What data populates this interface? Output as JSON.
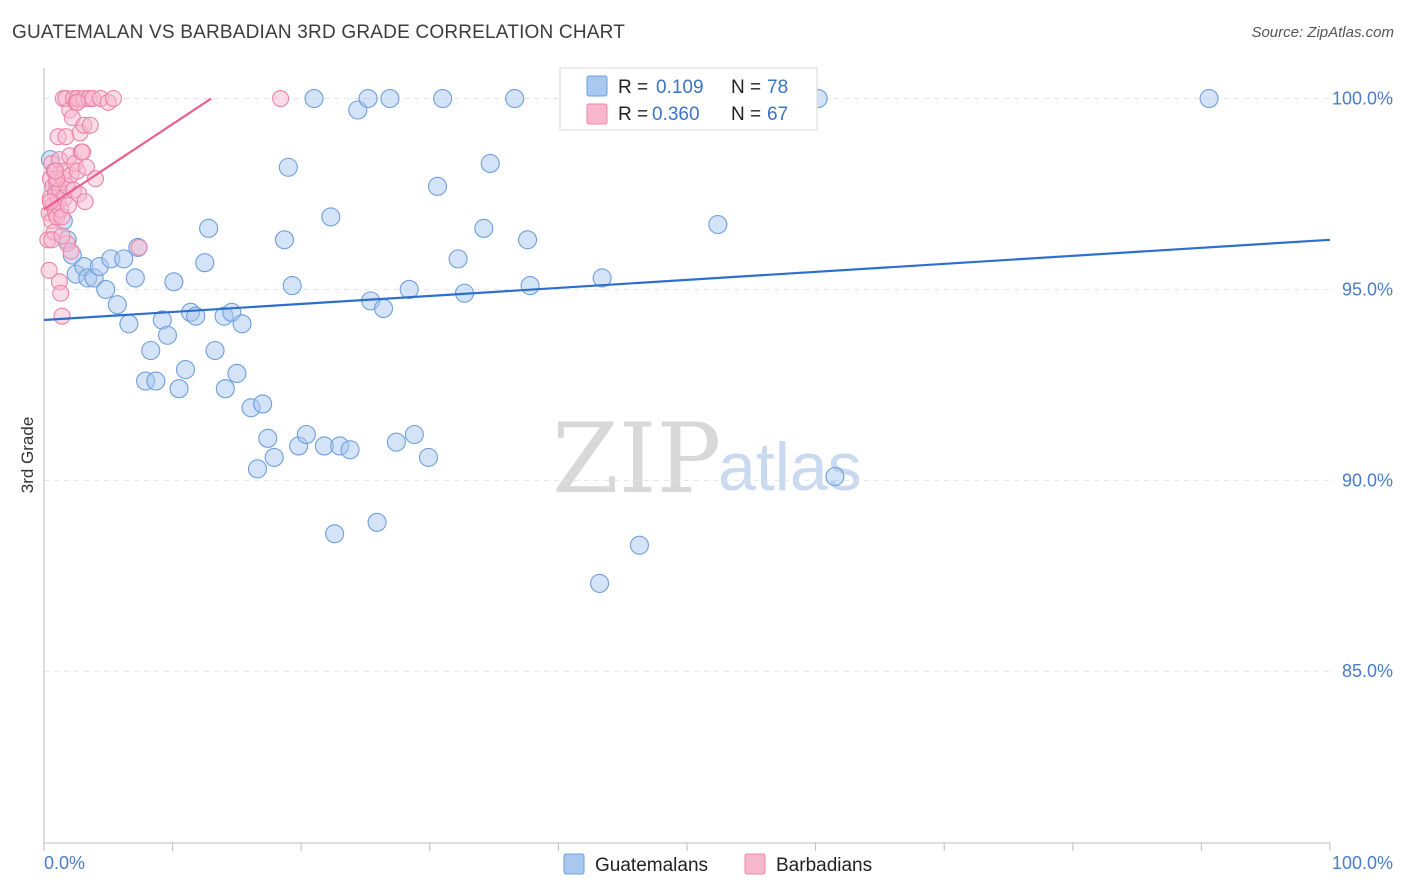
{
  "title": "GUATEMALAN VS BARBADIAN 3RD GRADE CORRELATION CHART",
  "source": "Source: ZipAtlas.com",
  "watermark": {
    "zip": "ZIP",
    "atlas": "atlas"
  },
  "colors": {
    "blue_fill": "#a9c8f0",
    "blue_stroke": "#6d9fdc",
    "blue_line": "#2d6fcc",
    "pink_fill": "#f7b8cd",
    "pink_stroke": "#ec84a8",
    "pink_line": "#e8608f",
    "tick_text": "#4a7cc9",
    "grid": "#e2e2e2"
  },
  "legend": {
    "rows": [
      {
        "r_label": "R = ",
        "r_value": "0.109",
        "n_label": "N = ",
        "n_value": "78"
      },
      {
        "r_label": "R = ",
        "r_value": "0.360",
        "n_label": "N = ",
        "n_value": "67"
      }
    ]
  },
  "chart_data": {
    "type": "scatter",
    "title": "GUATEMALAN VS BARBADIAN 3RD GRADE CORRELATION CHART",
    "xlabel": "",
    "ylabel": "3rd Grade",
    "xlim": [
      0,
      100
    ],
    "ylim": [
      80.5,
      100.8
    ],
    "x_ticks": [
      "0.0%",
      "100.0%"
    ],
    "y_ticks": [
      {
        "value": 100,
        "label": "100.0%"
      },
      {
        "value": 95,
        "label": "95.0%"
      },
      {
        "value": 90,
        "label": "90.0%"
      },
      {
        "value": 85,
        "label": "85.0%"
      }
    ],
    "grid": true,
    "legend_position": "top-center",
    "series": [
      {
        "name": "Guatemalans",
        "color": "#a9c8f0",
        "trend": {
          "x": [
            0,
            100
          ],
          "y": [
            94.2,
            96.3
          ]
        },
        "points": [
          [
            0.5,
            98.4
          ],
          [
            1.0,
            97.6
          ],
          [
            1.5,
            96.8
          ],
          [
            1.8,
            96.3
          ],
          [
            2.2,
            95.9
          ],
          [
            2.5,
            95.4
          ],
          [
            3.1,
            95.6
          ],
          [
            3.4,
            95.3
          ],
          [
            3.9,
            95.3
          ],
          [
            4.3,
            95.6
          ],
          [
            4.8,
            95.0
          ],
          [
            5.2,
            95.8
          ],
          [
            5.7,
            94.6
          ],
          [
            6.2,
            95.8
          ],
          [
            6.6,
            94.1
          ],
          [
            7.1,
            95.3
          ],
          [
            7.3,
            96.1
          ],
          [
            7.9,
            92.6
          ],
          [
            8.3,
            93.4
          ],
          [
            8.7,
            92.6
          ],
          [
            9.2,
            94.2
          ],
          [
            9.6,
            93.8
          ],
          [
            10.1,
            95.2
          ],
          [
            10.5,
            92.4
          ],
          [
            11.0,
            92.9
          ],
          [
            11.4,
            94.4
          ],
          [
            11.8,
            94.3
          ],
          [
            12.5,
            95.7
          ],
          [
            12.8,
            96.6
          ],
          [
            13.3,
            93.4
          ],
          [
            14.1,
            92.4
          ],
          [
            14.0,
            94.3
          ],
          [
            14.6,
            94.4
          ],
          [
            15.0,
            92.8
          ],
          [
            15.4,
            94.1
          ],
          [
            16.1,
            91.9
          ],
          [
            16.6,
            90.3
          ],
          [
            17.0,
            92.0
          ],
          [
            17.4,
            91.1
          ],
          [
            17.9,
            90.6
          ],
          [
            18.7,
            96.3
          ],
          [
            19.0,
            98.2
          ],
          [
            19.3,
            95.1
          ],
          [
            19.8,
            90.9
          ],
          [
            20.4,
            91.2
          ],
          [
            21.0,
            100.0
          ],
          [
            21.8,
            90.9
          ],
          [
            22.3,
            96.9
          ],
          [
            22.6,
            88.6
          ],
          [
            23.0,
            90.9
          ],
          [
            23.8,
            90.8
          ],
          [
            24.4,
            99.7
          ],
          [
            25.2,
            100.0
          ],
          [
            25.4,
            94.7
          ],
          [
            25.9,
            88.9
          ],
          [
            26.4,
            94.5
          ],
          [
            26.9,
            100.0
          ],
          [
            27.4,
            91.0
          ],
          [
            28.4,
            95.0
          ],
          [
            28.8,
            91.2
          ],
          [
            29.9,
            90.6
          ],
          [
            30.6,
            97.7
          ],
          [
            31.0,
            100.0
          ],
          [
            32.2,
            95.8
          ],
          [
            32.7,
            94.9
          ],
          [
            34.2,
            96.6
          ],
          [
            34.7,
            98.3
          ],
          [
            36.6,
            100.0
          ],
          [
            37.6,
            96.3
          ],
          [
            37.8,
            95.1
          ],
          [
            43.2,
            87.3
          ],
          [
            43.4,
            95.3
          ],
          [
            46.3,
            88.3
          ],
          [
            52.4,
            96.7
          ],
          [
            58.9,
            100.0
          ],
          [
            60.2,
            100.0
          ],
          [
            61.5,
            90.1
          ],
          [
            90.6,
            100.0
          ]
        ]
      },
      {
        "name": "Barbadians",
        "color": "#f7b8cd",
        "trend": {
          "x": [
            0,
            13
          ],
          "y": [
            97.1,
            100.0
          ]
        },
        "points": [
          [
            0.3,
            96.3
          ],
          [
            0.4,
            97.0
          ],
          [
            0.5,
            97.4
          ],
          [
            0.5,
            97.9
          ],
          [
            0.6,
            98.3
          ],
          [
            0.6,
            96.8
          ],
          [
            0.7,
            97.2
          ],
          [
            0.7,
            97.7
          ],
          [
            0.8,
            96.5
          ],
          [
            0.8,
            98.1
          ],
          [
            0.9,
            97.5
          ],
          [
            0.9,
            97.0
          ],
          [
            1.0,
            96.9
          ],
          [
            1.0,
            97.8
          ],
          [
            1.1,
            99.0
          ],
          [
            1.1,
            97.3
          ],
          [
            1.2,
            98.4
          ],
          [
            1.2,
            97.6
          ],
          [
            1.2,
            95.2
          ],
          [
            1.3,
            94.9
          ],
          [
            1.3,
            97.1
          ],
          [
            1.4,
            94.3
          ],
          [
            1.4,
            96.9
          ],
          [
            1.5,
            97.9
          ],
          [
            1.5,
            100.0
          ],
          [
            1.6,
            98.1
          ],
          [
            1.6,
            97.4
          ],
          [
            1.7,
            99.0
          ],
          [
            1.7,
            100.0
          ],
          [
            1.8,
            97.7
          ],
          [
            1.8,
            96.2
          ],
          [
            1.9,
            97.2
          ],
          [
            2.0,
            98.5
          ],
          [
            2.0,
            99.7
          ],
          [
            2.1,
            96.0
          ],
          [
            2.1,
            98.0
          ],
          [
            2.2,
            99.5
          ],
          [
            2.3,
            97.6
          ],
          [
            2.3,
            100.0
          ],
          [
            2.4,
            98.3
          ],
          [
            2.5,
            99.9
          ],
          [
            2.6,
            100.0
          ],
          [
            2.6,
            98.1
          ],
          [
            2.7,
            97.5
          ],
          [
            2.8,
            99.1
          ],
          [
            2.9,
            98.6
          ],
          [
            3.0,
            98.6
          ],
          [
            3.1,
            100.0
          ],
          [
            3.1,
            99.3
          ],
          [
            3.2,
            97.3
          ],
          [
            3.3,
            98.2
          ],
          [
            3.5,
            100.0
          ],
          [
            3.6,
            99.3
          ],
          [
            3.8,
            100.0
          ],
          [
            4.0,
            97.9
          ],
          [
            4.4,
            100.0
          ],
          [
            5.0,
            99.9
          ],
          [
            5.4,
            100.0
          ],
          [
            7.4,
            96.1
          ],
          [
            18.4,
            100.0
          ],
          [
            0.4,
            95.5
          ],
          [
            0.6,
            96.3
          ],
          [
            1.0,
            97.9
          ],
          [
            1.4,
            96.4
          ],
          [
            0.9,
            98.1
          ],
          [
            2.6,
            99.9
          ],
          [
            0.5,
            97.3
          ]
        ]
      }
    ]
  }
}
